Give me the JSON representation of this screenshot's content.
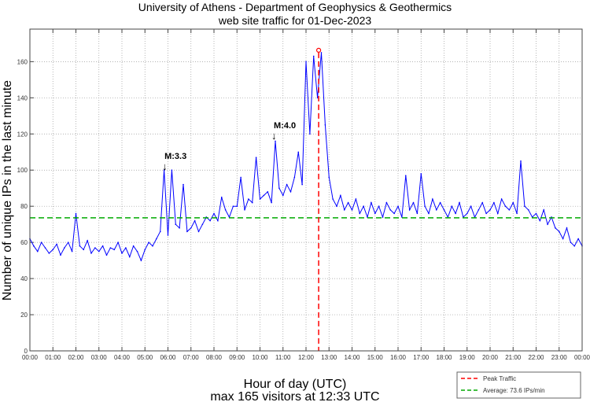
{
  "chart_data": {
    "type": "line",
    "title": "University of Athens - Department of Geophysics & Geothermics",
    "subtitle": "web site traffic for 01-Dec-2023",
    "xlabel": "Hour of day (UTC)",
    "xlabel2": "max 165 visitors at 12:33 UTC",
    "ylabel": "Number of unique IPs in the last minute",
    "xlim_hours": [
      0,
      24
    ],
    "ylim": [
      0,
      178
    ],
    "grid": true,
    "x_ticks": [
      "00:00",
      "01:00",
      "02:00",
      "03:00",
      "04:00",
      "05:00",
      "06:00",
      "07:00",
      "08:00",
      "09:00",
      "10:00",
      "11:00",
      "12:00",
      "13:00",
      "14:00",
      "15:00",
      "16:00",
      "17:00",
      "18:00",
      "19:00",
      "20:00",
      "21:00",
      "22:00",
      "23:00",
      "00:00"
    ],
    "y_ticks": [
      0,
      20,
      40,
      60,
      80,
      100,
      120,
      140,
      160
    ],
    "x_step_minutes": 10,
    "series": [
      {
        "name": "Traffic",
        "color": "#0000ff",
        "values": [
          62,
          58,
          55,
          60,
          57,
          54,
          56,
          59,
          53,
          57,
          60,
          55,
          76,
          58,
          56,
          61,
          54,
          57,
          55,
          58,
          53,
          57,
          56,
          60,
          54,
          57,
          52,
          58,
          55,
          50,
          56,
          60,
          58,
          62,
          66,
          100,
          64,
          100,
          70,
          68,
          92,
          66,
          68,
          72,
          66,
          70,
          74,
          72,
          76,
          72,
          85,
          78,
          74,
          80,
          80,
          96,
          78,
          84,
          82,
          107,
          84,
          86,
          88,
          82,
          116,
          90,
          86,
          92,
          88,
          96,
          110,
          92,
          160,
          120,
          163,
          140,
          165,
          125,
          96,
          84,
          80,
          86,
          78,
          82,
          78,
          84,
          76,
          80,
          74,
          82,
          76,
          80,
          74,
          82,
          78,
          76,
          80,
          74,
          97,
          78,
          82,
          76,
          98,
          80,
          76,
          84,
          78,
          82,
          78,
          74,
          80,
          76,
          82,
          74,
          76,
          80,
          74,
          78,
          82,
          76,
          78,
          82,
          76,
          84,
          80,
          78,
          82,
          76,
          105,
          80,
          78,
          74,
          76,
          72,
          78,
          70,
          74,
          68,
          66,
          62,
          68,
          60,
          58,
          62,
          58
        ]
      }
    ],
    "peak": {
      "time_hours": 12.55,
      "value": 165,
      "color": "#ff0000"
    },
    "average": {
      "value": 73.6,
      "color": "#00aa00"
    },
    "annotations": [
      {
        "text": "M:3.3",
        "time_hours": 5.85,
        "value": 100
      },
      {
        "text": "M:4.0",
        "time_hours": 10.6,
        "value": 117
      }
    ],
    "legend": {
      "placement": "bottom-right",
      "entries": [
        "Peak Traffic",
        "Average: 73.6 IPs/min"
      ]
    }
  }
}
